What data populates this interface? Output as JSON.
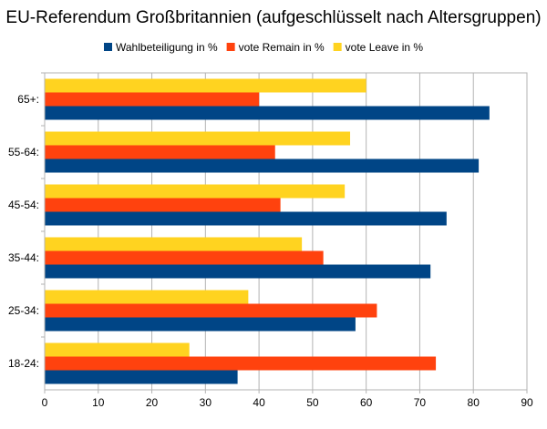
{
  "chart_data": {
    "type": "bar",
    "orientation": "horizontal",
    "title": "EU-Referendum Großbritannien (aufgeschlüsselt nach Altersgruppen)",
    "categories": [
      "18-24:",
      "25-34:",
      "35-44:",
      "45-54:",
      "55-64:",
      "65+:"
    ],
    "series": [
      {
        "name": "Wahlbeteiligung in %",
        "color": "#004586",
        "values": [
          36,
          58,
          72,
          75,
          81,
          83
        ]
      },
      {
        "name": "vote Remain in %",
        "color": "#ff420e",
        "values": [
          73,
          62,
          52,
          44,
          43,
          40
        ]
      },
      {
        "name": "vote Leave in %",
        "color": "#ffd320",
        "values": [
          27,
          38,
          48,
          56,
          57,
          60
        ]
      }
    ],
    "xlim": [
      0,
      90
    ],
    "xticks": [
      0,
      10,
      20,
      30,
      40,
      50,
      60,
      70,
      80,
      90
    ],
    "grid": true,
    "legend_position": "top"
  }
}
